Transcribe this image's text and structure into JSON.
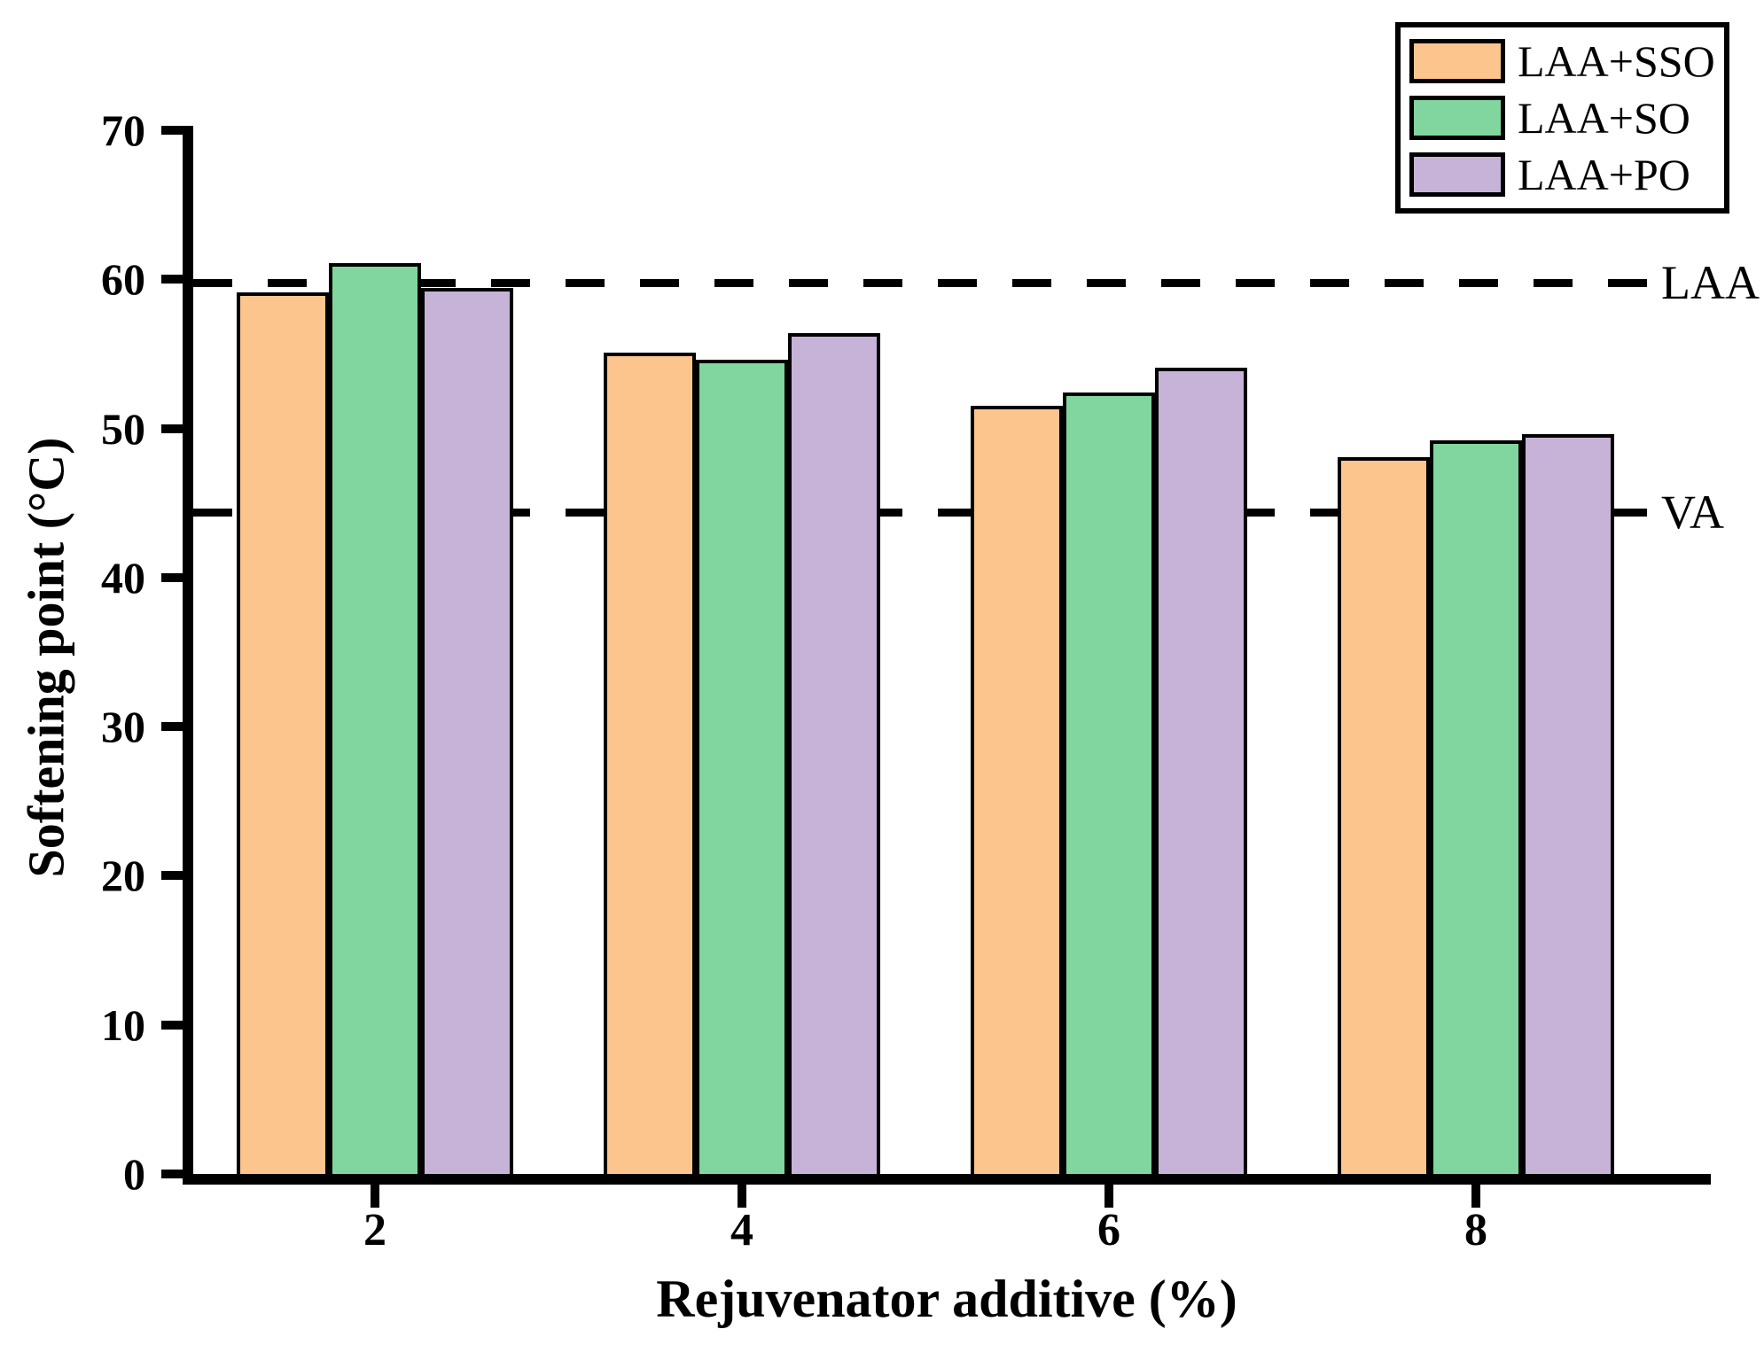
{
  "chart_data": {
    "type": "bar",
    "title": "",
    "xlabel": "Rejuvenator additive (%)",
    "ylabel": "Softening point (°C)",
    "categories": [
      "2",
      "4",
      "6",
      "8"
    ],
    "series": [
      {
        "name": "LAA+SSO",
        "color": "#FCC58E",
        "values": [
          59.1,
          55.1,
          51.5,
          48.1
        ]
      },
      {
        "name": "LAA+SO",
        "color": "#80D69E",
        "values": [
          61.1,
          54.6,
          52.4,
          49.2
        ]
      },
      {
        "name": "LAA+PO",
        "color": "#C7B3D7",
        "values": [
          59.4,
          56.4,
          54.1,
          49.6
        ]
      }
    ],
    "ylim": [
      0,
      70
    ],
    "yticks": [
      "0",
      "10",
      "20",
      "30",
      "40",
      "50",
      "60",
      "70"
    ],
    "reference_lines": [
      {
        "label": "LAA",
        "value": 59.8
      },
      {
        "label": "VA",
        "value": 44.4
      }
    ],
    "bar_outline_color": "#000000",
    "axis_color": "#000000",
    "legend_position": "top-right",
    "grid": false
  }
}
